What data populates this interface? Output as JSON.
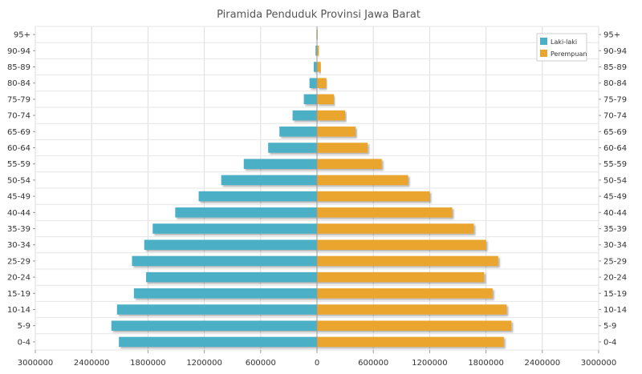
{
  "chart_data": {
    "type": "bar",
    "orientation": "horizontal",
    "title": "Piramida Penduduk Provinsi Jawa Barat",
    "categories": [
      "0-4",
      "5-9",
      "10-14",
      "15-19",
      "20-24",
      "25-29",
      "30-34",
      "35-39",
      "40-44",
      "45-49",
      "50-54",
      "55-59",
      "60-64",
      "65-69",
      "70-74",
      "75-79",
      "80-84",
      "85-89",
      "90-94",
      "95+"
    ],
    "series": [
      {
        "name": "Laki-laki",
        "color": "#4bb0c6",
        "side": "left",
        "values": [
          2110000,
          2190000,
          2130000,
          1950000,
          1820000,
          1970000,
          1840000,
          1750000,
          1510000,
          1260000,
          1020000,
          780000,
          520000,
          400000,
          260000,
          140000,
          80000,
          35000,
          15000,
          6000
        ]
      },
      {
        "name": "Perempuan",
        "color": "#e9a52e",
        "side": "right",
        "values": [
          1990000,
          2070000,
          2020000,
          1870000,
          1780000,
          1930000,
          1800000,
          1670000,
          1440000,
          1200000,
          970000,
          690000,
          540000,
          410000,
          300000,
          180000,
          100000,
          40000,
          20000,
          8000
        ]
      }
    ],
    "xlim": [
      -3000000,
      3000000
    ],
    "x_ticks": [
      {
        "value": -3000000,
        "label": "3000000"
      },
      {
        "value": -2400000,
        "label": "2400000"
      },
      {
        "value": -1800000,
        "label": "1800000"
      },
      {
        "value": -1200000,
        "label": "1200000"
      },
      {
        "value": -600000,
        "label": "600000"
      },
      {
        "value": 0,
        "label": "0"
      },
      {
        "value": 600000,
        "label": "600000"
      },
      {
        "value": 1200000,
        "label": "1200000"
      },
      {
        "value": 1800000,
        "label": "1800000"
      },
      {
        "value": 2400000,
        "label": "2400000"
      },
      {
        "value": 3000000,
        "label": "3000000"
      }
    ],
    "grid": true,
    "legend_position": "top-right"
  }
}
